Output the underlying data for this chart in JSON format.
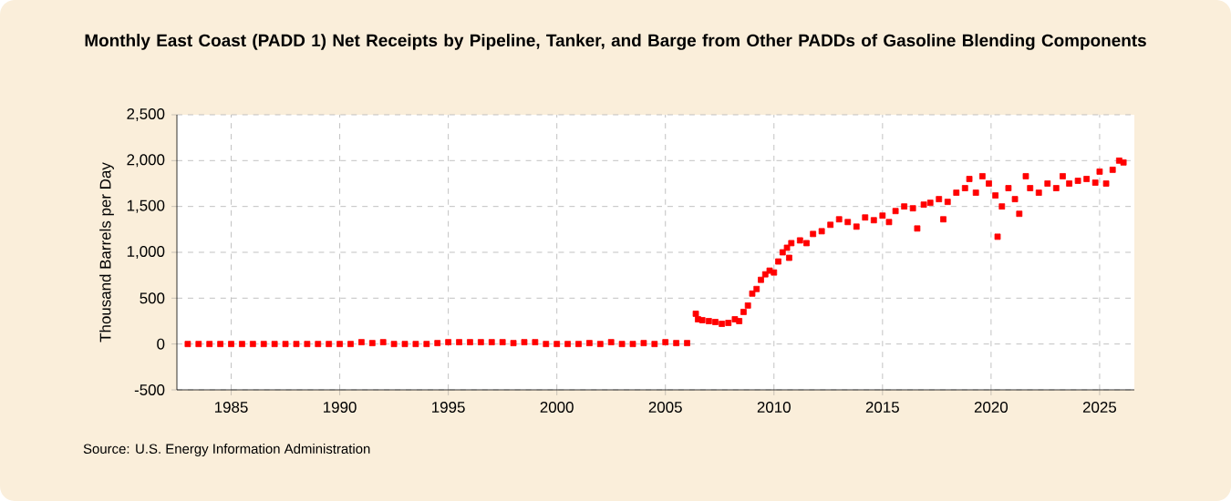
{
  "chart_data": {
    "type": "scatter",
    "title": "Monthly East Coast (PADD 1) Net Receipts by Pipeline, Tanker, and Barge from Other PADDs of Gasoline Blending Components",
    "ylabel": "Thousand Barrels per Day",
    "annotations": [
      "Source: U.S. Energy Information Administration"
    ],
    "x": [
      1983.0,
      1983.5,
      1984.0,
      1984.5,
      1985.0,
      1985.5,
      1986.0,
      1986.5,
      1987.0,
      1987.5,
      1988.0,
      1988.5,
      1989.0,
      1989.5,
      1990.0,
      1990.5,
      1991.0,
      1991.5,
      1992.0,
      1992.5,
      1993.0,
      1993.5,
      1994.0,
      1994.5,
      1995.0,
      1995.5,
      1996.0,
      1996.5,
      1997.0,
      1997.5,
      1998.0,
      1998.5,
      1999.0,
      1999.5,
      2000.0,
      2000.5,
      2001.0,
      2001.5,
      2002.0,
      2002.5,
      2003.0,
      2003.5,
      2004.0,
      2004.5,
      2005.0,
      2005.5,
      2006.0,
      2006.4,
      2006.5,
      2006.7,
      2007.0,
      2007.3,
      2007.6,
      2007.9,
      2008.2,
      2008.4,
      2008.6,
      2008.8,
      2009.0,
      2009.2,
      2009.4,
      2009.6,
      2009.8,
      2010.0,
      2010.2,
      2010.4,
      2010.6,
      2010.7,
      2010.8,
      2011.2,
      2011.5,
      2011.8,
      2012.2,
      2012.6,
      2013.0,
      2013.4,
      2013.8,
      2014.2,
      2014.6,
      2015.0,
      2015.3,
      2015.6,
      2016.0,
      2016.4,
      2016.6,
      2016.9,
      2017.2,
      2017.6,
      2017.8,
      2018.0,
      2018.4,
      2018.8,
      2019.0,
      2019.3,
      2019.6,
      2019.9,
      2020.2,
      2020.3,
      2020.5,
      2020.8,
      2021.1,
      2021.3,
      2021.6,
      2021.8,
      2022.2,
      2022.6,
      2023.0,
      2023.3,
      2023.6,
      2024.0,
      2024.4,
      2024.8,
      2025.0,
      2025.3,
      2025.6,
      2025.9,
      2026.1
    ],
    "values": [
      0,
      0,
      0,
      0,
      0,
      0,
      0,
      0,
      0,
      0,
      0,
      0,
      0,
      0,
      0,
      0,
      20,
      10,
      20,
      0,
      0,
      0,
      0,
      10,
      20,
      20,
      20,
      20,
      20,
      20,
      10,
      20,
      20,
      0,
      0,
      0,
      0,
      10,
      0,
      20,
      0,
      0,
      10,
      0,
      20,
      10,
      10,
      330,
      270,
      260,
      250,
      240,
      220,
      230,
      270,
      250,
      350,
      420,
      550,
      600,
      700,
      760,
      800,
      780,
      900,
      1000,
      1050,
      940,
      1100,
      1130,
      1100,
      1200,
      1230,
      1300,
      1360,
      1330,
      1280,
      1380,
      1350,
      1400,
      1330,
      1450,
      1500,
      1480,
      1260,
      1520,
      1540,
      1580,
      1360,
      1550,
      1650,
      1700,
      1800,
      1650,
      1830,
      1750,
      1620,
      1170,
      1500,
      1700,
      1580,
      1420,
      1830,
      1700,
      1650,
      1750,
      1700,
      1830,
      1750,
      1780,
      1800,
      1760,
      1880,
      1750,
      1900,
      2000,
      1980
    ],
    "color": "#ff0000",
    "marker": "square",
    "xlim": [
      1982.5,
      2026.6
    ],
    "xticks": [
      1985,
      1990,
      1995,
      2000,
      2005,
      2010,
      2015,
      2020,
      2025
    ],
    "ylim": [
      -500,
      2500
    ],
    "yticks": [
      {
        "value": -500,
        "label": "-500"
      },
      {
        "value": 0,
        "label": "0"
      },
      {
        "value": 500,
        "label": "500"
      },
      {
        "value": 1000,
        "label": "1,000"
      },
      {
        "value": 1500,
        "label": "1,500"
      },
      {
        "value": 2000,
        "label": "2,000"
      },
      {
        "value": 2500,
        "label": "2,500"
      }
    ],
    "grid": true
  }
}
